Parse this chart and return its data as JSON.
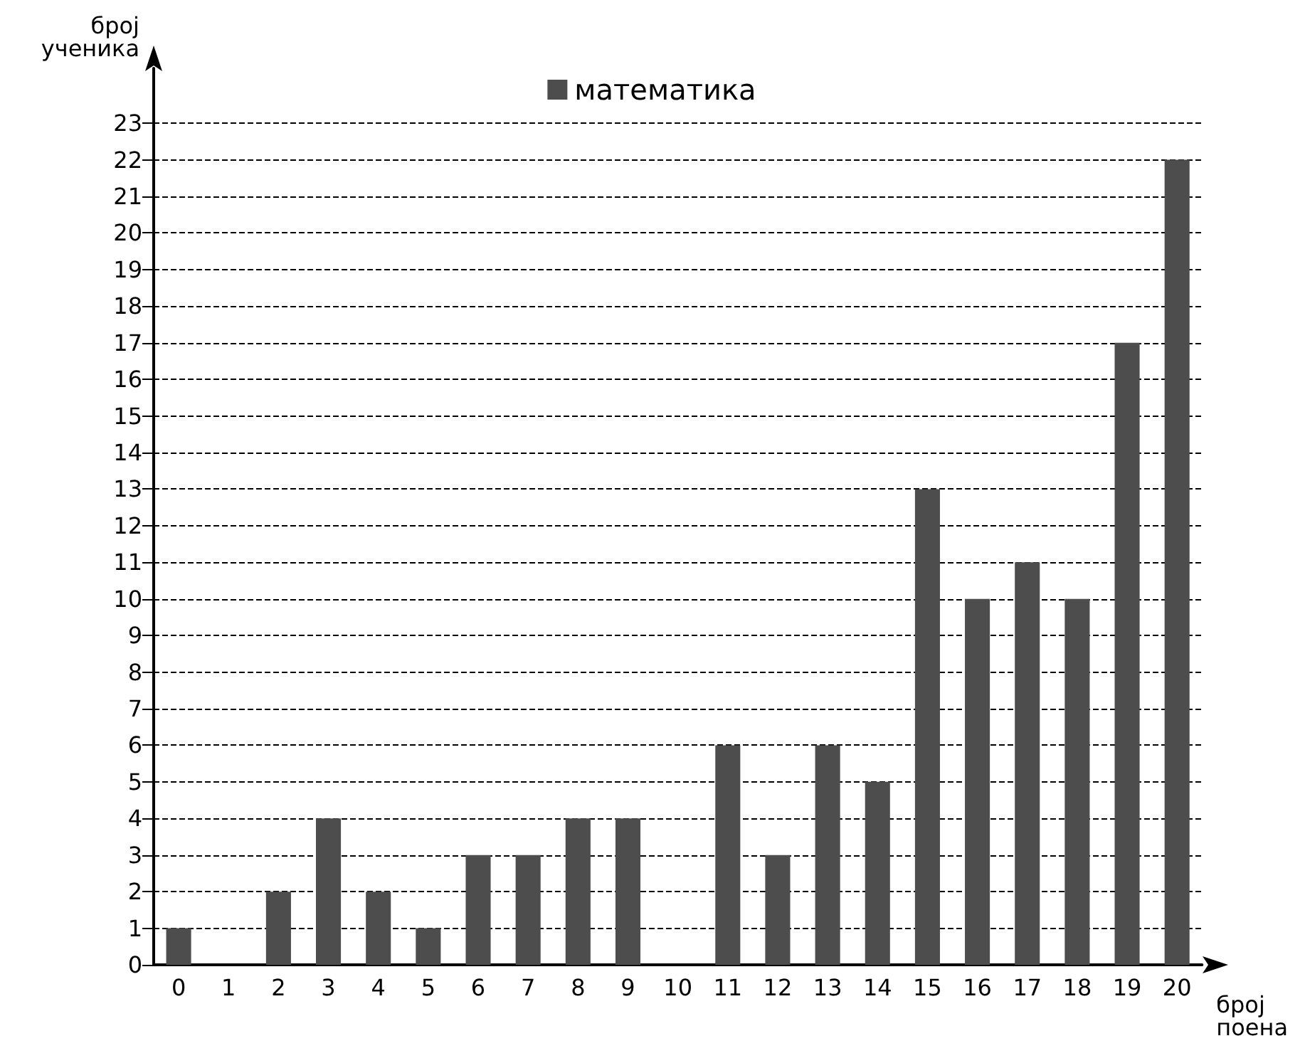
{
  "chart_data": {
    "type": "bar",
    "xlabel": "број поена",
    "ylabel": "број ученика",
    "categories": [
      "0",
      "1",
      "2",
      "3",
      "4",
      "5",
      "6",
      "7",
      "8",
      "9",
      "10",
      "11",
      "12",
      "13",
      "14",
      "15",
      "16",
      "17",
      "18",
      "19",
      "20"
    ],
    "series": [
      {
        "name": "математика",
        "color": "#4d4d4d",
        "values": [
          1,
          0,
          2,
          4,
          2,
          1,
          3,
          3,
          4,
          4,
          0,
          6,
          3,
          6,
          5,
          13,
          10,
          11,
          10,
          17,
          22
        ]
      }
    ],
    "ylim": [
      0,
      24.5
    ],
    "yticks": [
      0,
      1,
      2,
      3,
      4,
      5,
      6,
      7,
      8,
      9,
      10,
      11,
      12,
      13,
      14,
      15,
      16,
      17,
      18,
      19,
      20,
      21,
      22,
      23
    ],
    "grid": "y",
    "legend": "top"
  }
}
